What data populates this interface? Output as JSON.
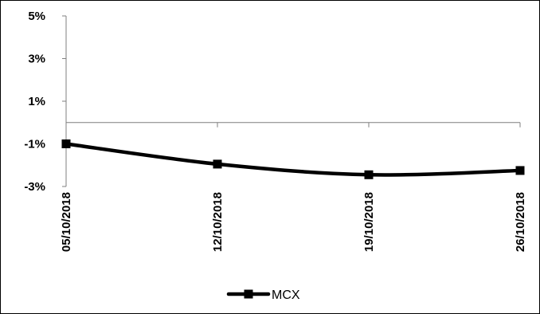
{
  "chart_data": {
    "type": "line",
    "title": "",
    "xlabel": "",
    "ylabel": "",
    "categories": [
      "05/10/2018",
      "12/10/2018",
      "19/10/2018",
      "26/10/2018"
    ],
    "series": [
      {
        "name": "MCX",
        "values": [
          -1.0,
          -1.95,
          -2.45,
          -2.25
        ]
      }
    ],
    "ylim": [
      -3,
      5
    ],
    "yticks": [
      -3,
      -1,
      1,
      3,
      5
    ],
    "ytick_labels": [
      "-3%",
      "-1%",
      "1%",
      "3%",
      "5%"
    ],
    "grid": false,
    "legend_position": "bottom",
    "series_color": "#000000",
    "marker": "square",
    "smooth": true
  }
}
